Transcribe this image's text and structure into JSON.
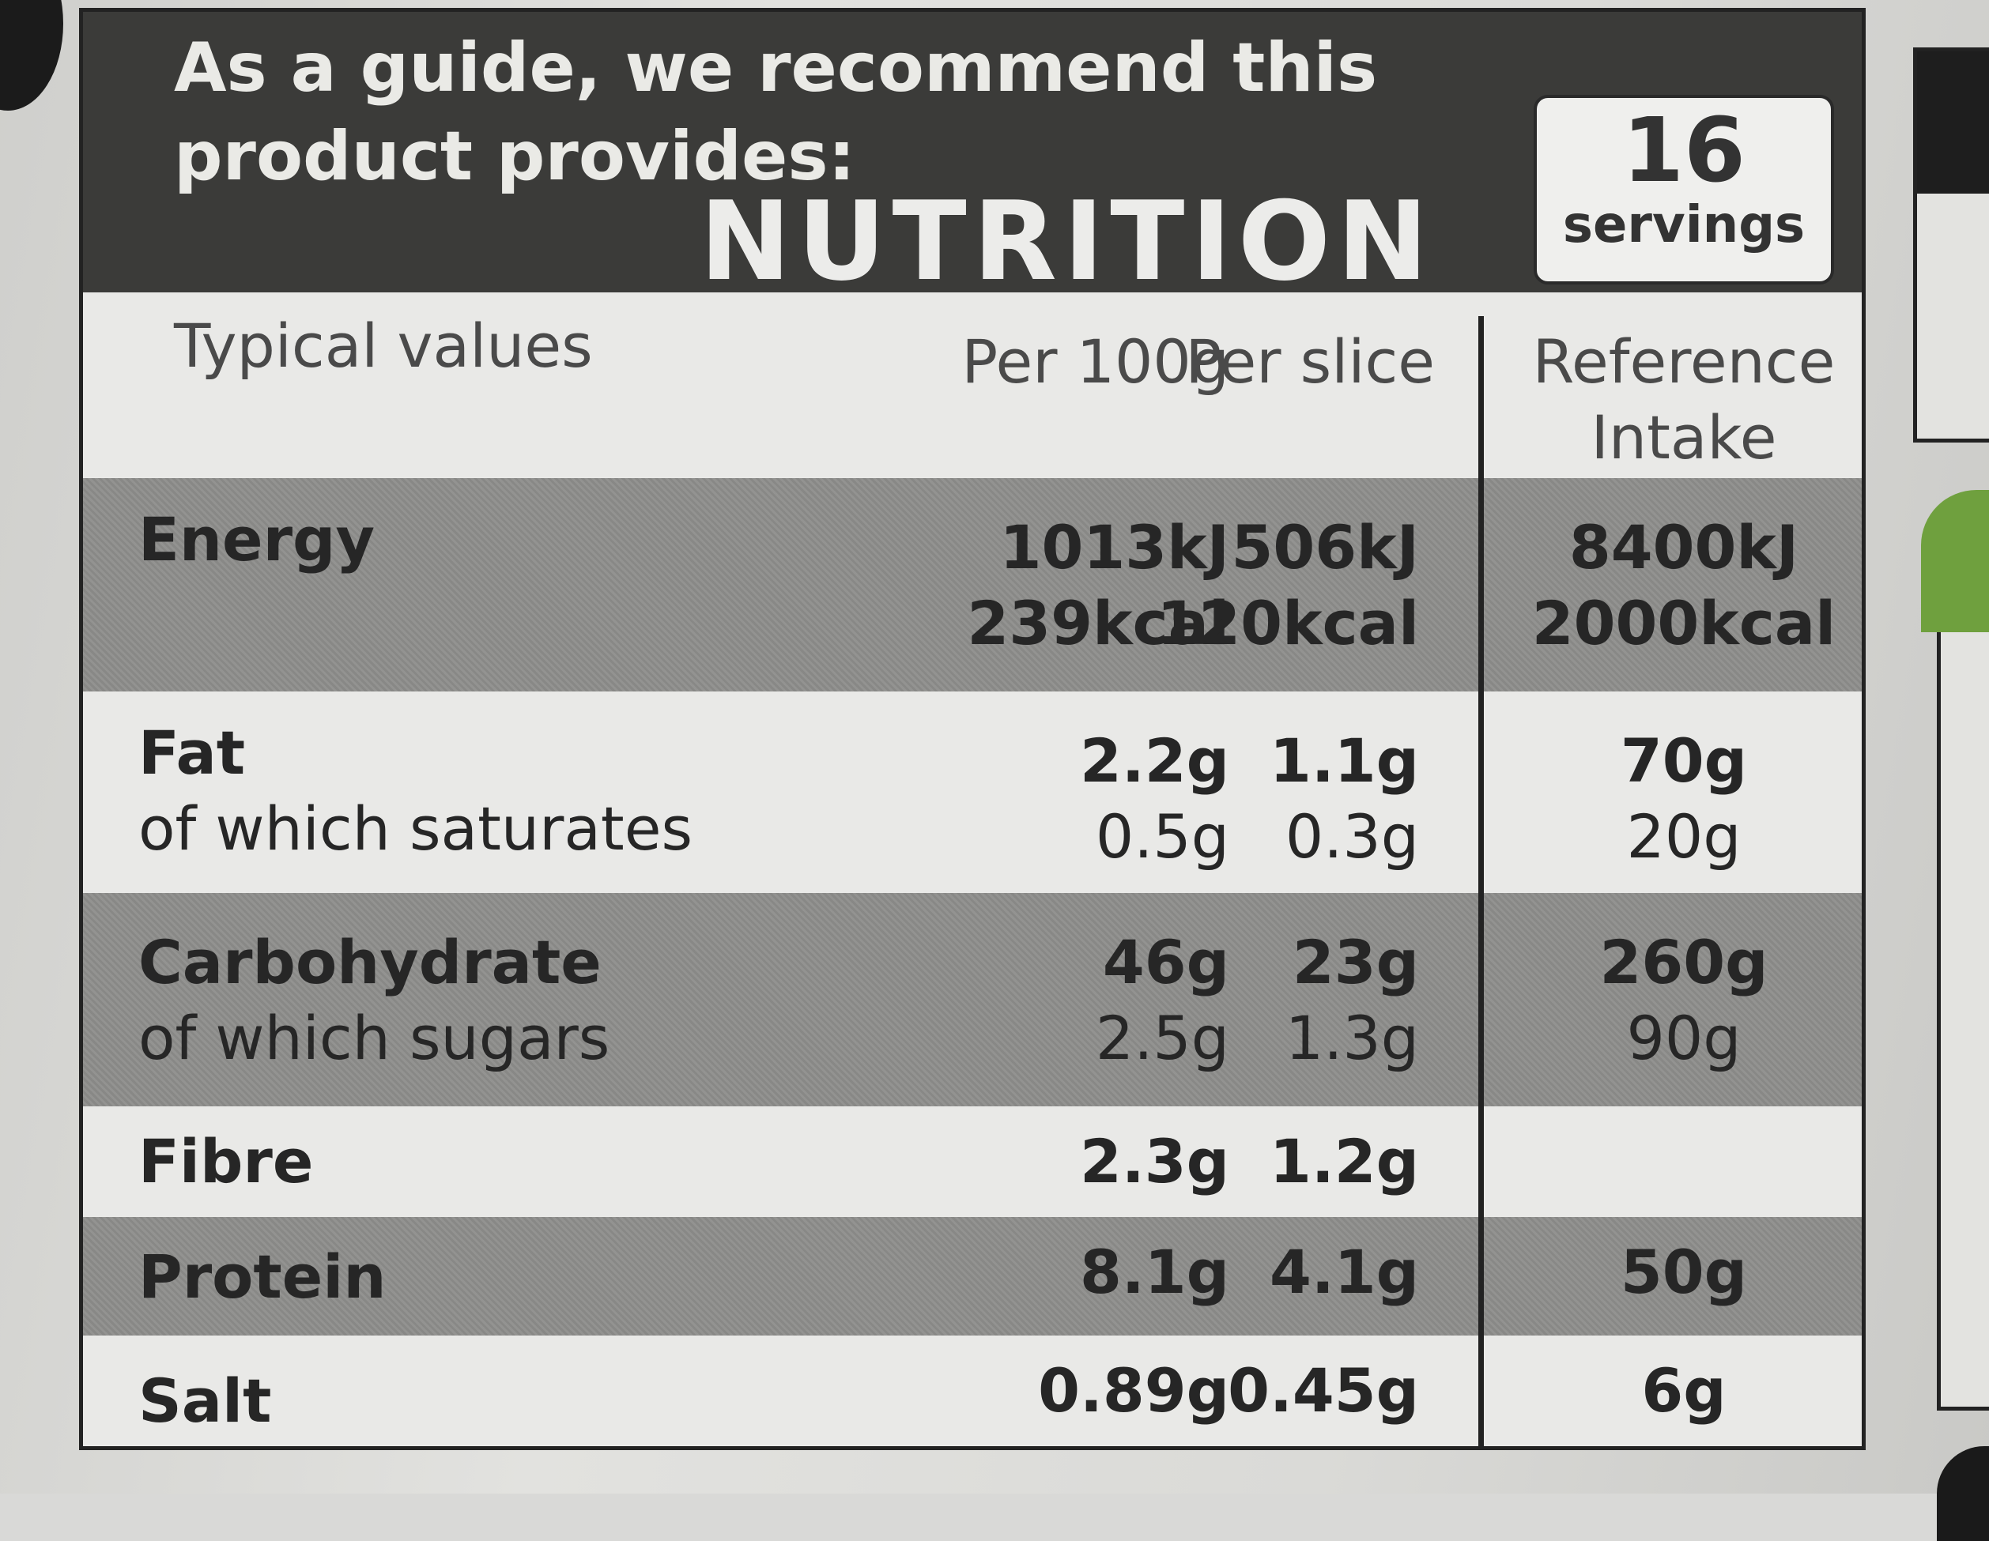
{
  "header": {
    "guide_text": "As a guide, we recommend this product provides:",
    "title": "NUTRITION",
    "servings_number": "16",
    "servings_word": "servings"
  },
  "columns": {
    "typical": "Typical values",
    "per100": "Per 100g",
    "perslice": "Per slice",
    "ref_line1": "Reference",
    "ref_line2": "Intake"
  },
  "rows": [
    {
      "name": "Energy",
      "per100": [
        "1013kJ",
        "239kcal"
      ],
      "perslice": [
        "506kJ",
        "120kcal"
      ],
      "ref": [
        "8400kJ",
        "2000kcal"
      ]
    },
    {
      "name": "Fat",
      "sub": "of which saturates",
      "per100": [
        "2.2g",
        "0.5g"
      ],
      "perslice": [
        "1.1g",
        "0.3g"
      ],
      "ref": [
        "70g",
        "20g"
      ]
    },
    {
      "name": "Carbohydrate",
      "sub": "of which sugars",
      "per100": [
        "46g",
        "2.5g"
      ],
      "perslice": [
        "23g",
        "1.3g"
      ],
      "ref": [
        "260g",
        "90g"
      ]
    },
    {
      "name": "Fibre",
      "per100": [
        "2.3g"
      ],
      "perslice": [
        "1.2g"
      ],
      "ref": [
        ""
      ]
    },
    {
      "name": "Protein",
      "per100": [
        "8.1g"
      ],
      "perslice": [
        "4.1g"
      ],
      "ref": [
        "50g"
      ]
    },
    {
      "name": "Salt",
      "per100": [
        "0.89g"
      ],
      "perslice": [
        "0.45g"
      ],
      "ref": [
        "6g"
      ]
    }
  ]
}
